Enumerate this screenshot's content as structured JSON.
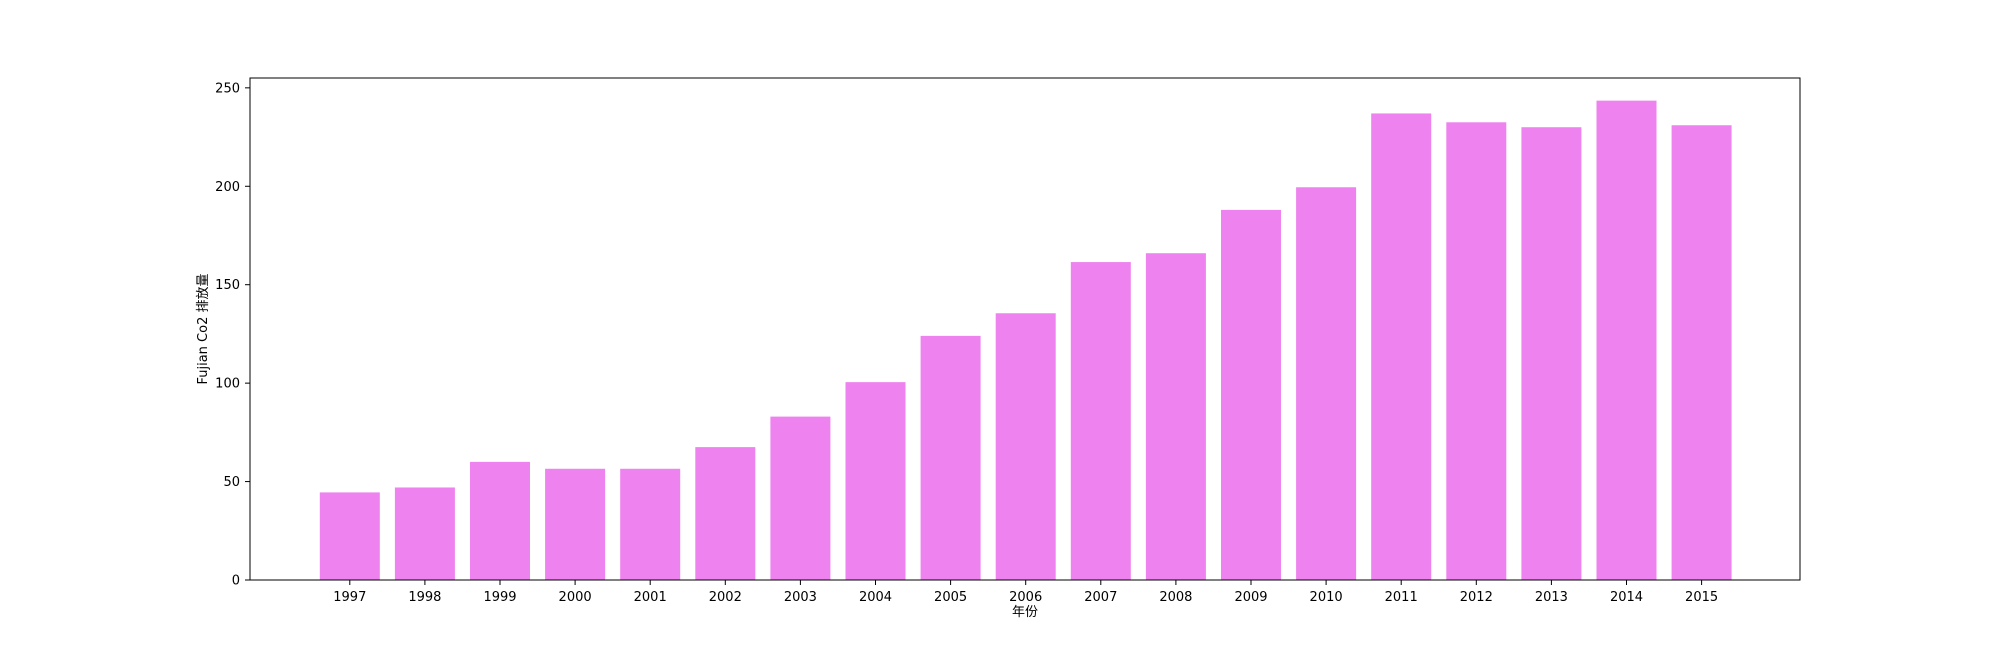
{
  "chart_data": {
    "type": "bar",
    "title": "",
    "xlabel": "年份",
    "ylabel": "Fujian Co2 排放量",
    "categories": [
      "1997",
      "1998",
      "1999",
      "2000",
      "2001",
      "2002",
      "2003",
      "2004",
      "2005",
      "2006",
      "2007",
      "2008",
      "2009",
      "2010",
      "2011",
      "2012",
      "2013",
      "2014",
      "2015"
    ],
    "values": [
      44.5,
      47,
      60,
      56.5,
      56.5,
      67.5,
      83,
      100.5,
      124,
      135.5,
      161.5,
      166,
      188,
      199.5,
      237,
      232.5,
      230,
      243.5,
      231
    ],
    "ylim": [
      0,
      255
    ],
    "yticks": [
      "0",
      "50",
      "100",
      "150",
      "200",
      "250"
    ],
    "ytick_values": [
      0,
      50,
      100,
      150,
      200,
      250
    ],
    "bar_color": "#ee82ee",
    "grid": false,
    "legend": "none"
  }
}
